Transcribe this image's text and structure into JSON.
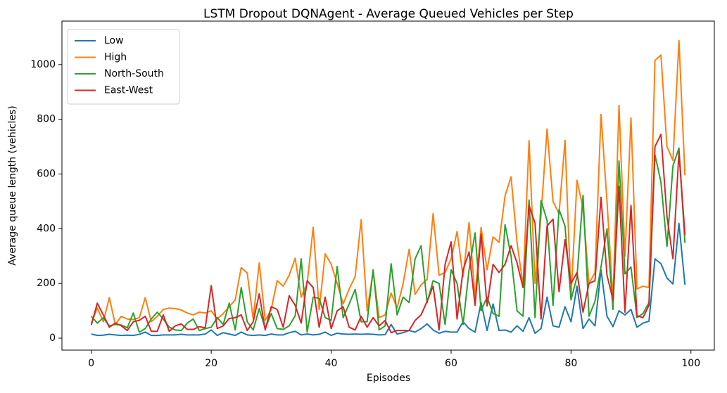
{
  "chart_data": {
    "type": "line",
    "title": "LSTM Dropout DQNAgent - Average Queued Vehicles per Step",
    "xlabel": "Episodes",
    "ylabel": "Average queue length (vehicles)",
    "x": [
      0,
      1,
      2,
      3,
      4,
      5,
      6,
      7,
      8,
      9,
      10,
      11,
      12,
      13,
      14,
      15,
      16,
      17,
      18,
      19,
      20,
      21,
      22,
      23,
      24,
      25,
      26,
      27,
      28,
      29,
      30,
      31,
      32,
      33,
      34,
      35,
      36,
      37,
      38,
      39,
      40,
      41,
      42,
      43,
      44,
      45,
      46,
      47,
      48,
      49,
      50,
      51,
      52,
      53,
      54,
      55,
      56,
      57,
      58,
      59,
      60,
      61,
      62,
      63,
      64,
      65,
      66,
      67,
      68,
      69,
      70,
      71,
      72,
      73,
      74,
      75,
      76,
      77,
      78,
      79,
      80,
      81,
      82,
      83,
      84,
      85,
      86,
      87,
      88,
      89,
      90,
      91,
      92,
      93,
      94,
      95,
      96,
      97,
      98,
      99
    ],
    "series": [
      {
        "name": "Low",
        "color": "#1f77b4",
        "values": [
          15,
          10,
          11,
          14,
          12,
          10,
          11,
          10,
          14,
          22,
          10,
          10,
          12,
          12,
          12,
          14,
          12,
          12,
          12,
          15,
          30,
          10,
          20,
          15,
          10,
          22,
          12,
          10,
          12,
          10,
          15,
          12,
          12,
          20,
          25,
          12,
          15,
          12,
          14,
          22,
          10,
          18,
          15,
          14,
          15,
          14,
          15,
          14,
          12,
          13,
          50,
          15,
          20,
          28,
          22,
          35,
          52,
          30,
          18,
          25,
          22,
          22,
          60,
          35,
          22,
          130,
          28,
          125,
          28,
          30,
          22,
          45,
          25,
          75,
          18,
          35,
          150,
          45,
          40,
          115,
          60,
          190,
          35,
          70,
          45,
          250,
          80,
          42,
          100,
          85,
          105,
          40,
          55,
          62,
          290,
          272,
          220,
          198,
          420,
          195
        ]
      },
      {
        "name": "High",
        "color": "#ff7f0e",
        "values": [
          55,
          110,
          60,
          148,
          50,
          80,
          70,
          68,
          75,
          148,
          60,
          80,
          105,
          110,
          108,
          103,
          92,
          85,
          95,
          92,
          100,
          70,
          90,
          115,
          140,
          258,
          238,
          70,
          275,
          65,
          105,
          210,
          190,
          230,
          292,
          150,
          200,
          405,
          105,
          308,
          270,
          200,
          125,
          180,
          225,
          433,
          100,
          245,
          75,
          85,
          165,
          110,
          200,
          325,
          160,
          195,
          215,
          455,
          230,
          240,
          290,
          390,
          225,
          423,
          150,
          405,
          250,
          370,
          350,
          520,
          590,
          350,
          190,
          722,
          200,
          450,
          765,
          500,
          455,
          723,
          150,
          577,
          475,
          200,
          240,
          818,
          500,
          140,
          851,
          300,
          805,
          180,
          190,
          185,
          1015,
          1035,
          700,
          650,
          1088,
          595
        ]
      },
      {
        "name": "North-South",
        "color": "#2ca02c",
        "values": [
          80,
          55,
          75,
          45,
          50,
          48,
          38,
          92,
          22,
          35,
          70,
          95,
          70,
          40,
          30,
          28,
          55,
          70,
          28,
          35,
          40,
          75,
          50,
          128,
          30,
          185,
          60,
          30,
          108,
          35,
          90,
          35,
          32,
          45,
          82,
          290,
          22,
          150,
          145,
          75,
          65,
          262,
          75,
          125,
          178,
          60,
          60,
          250,
          30,
          45,
          272,
          85,
          150,
          130,
          290,
          338,
          130,
          210,
          200,
          50,
          250,
          200,
          50,
          250,
          385,
          100,
          150,
          90,
          80,
          415,
          300,
          100,
          80,
          505,
          75,
          503,
          430,
          120,
          470,
          410,
          140,
          225,
          522,
          80,
          135,
          260,
          400,
          105,
          648,
          235,
          260,
          75,
          90,
          130,
          670,
          570,
          335,
          630,
          695,
          348
        ]
      },
      {
        "name": "East-West",
        "color": "#d62728",
        "values": [
          48,
          128,
          85,
          40,
          55,
          45,
          28,
          60,
          65,
          80,
          25,
          25,
          85,
          25,
          45,
          52,
          32,
          32,
          42,
          38,
          192,
          35,
          45,
          72,
          75,
          85,
          28,
          60,
          162,
          30,
          115,
          105,
          40,
          155,
          120,
          55,
          210,
          185,
          40,
          150,
          35,
          100,
          115,
          40,
          30,
          80,
          40,
          75,
          45,
          65,
          20,
          28,
          28,
          28,
          65,
          85,
          135,
          190,
          30,
          270,
          352,
          70,
          250,
          315,
          120,
          380,
          118,
          270,
          240,
          270,
          338,
          275,
          185,
          485,
          420,
          70,
          410,
          435,
          170,
          360,
          200,
          240,
          95,
          200,
          210,
          515,
          230,
          140,
          555,
          95,
          485,
          82,
          75,
          120,
          700,
          745,
          445,
          290,
          680,
          378
        ]
      }
    ],
    "xlim": [
      -4.9,
      103.9
    ],
    "ylim": [
      -43.7,
      1159
    ],
    "xticks": [
      0,
      20,
      40,
      60,
      80,
      100
    ],
    "yticks": [
      0,
      200,
      400,
      600,
      800,
      1000
    ],
    "grid": false,
    "legend": "upper left"
  }
}
